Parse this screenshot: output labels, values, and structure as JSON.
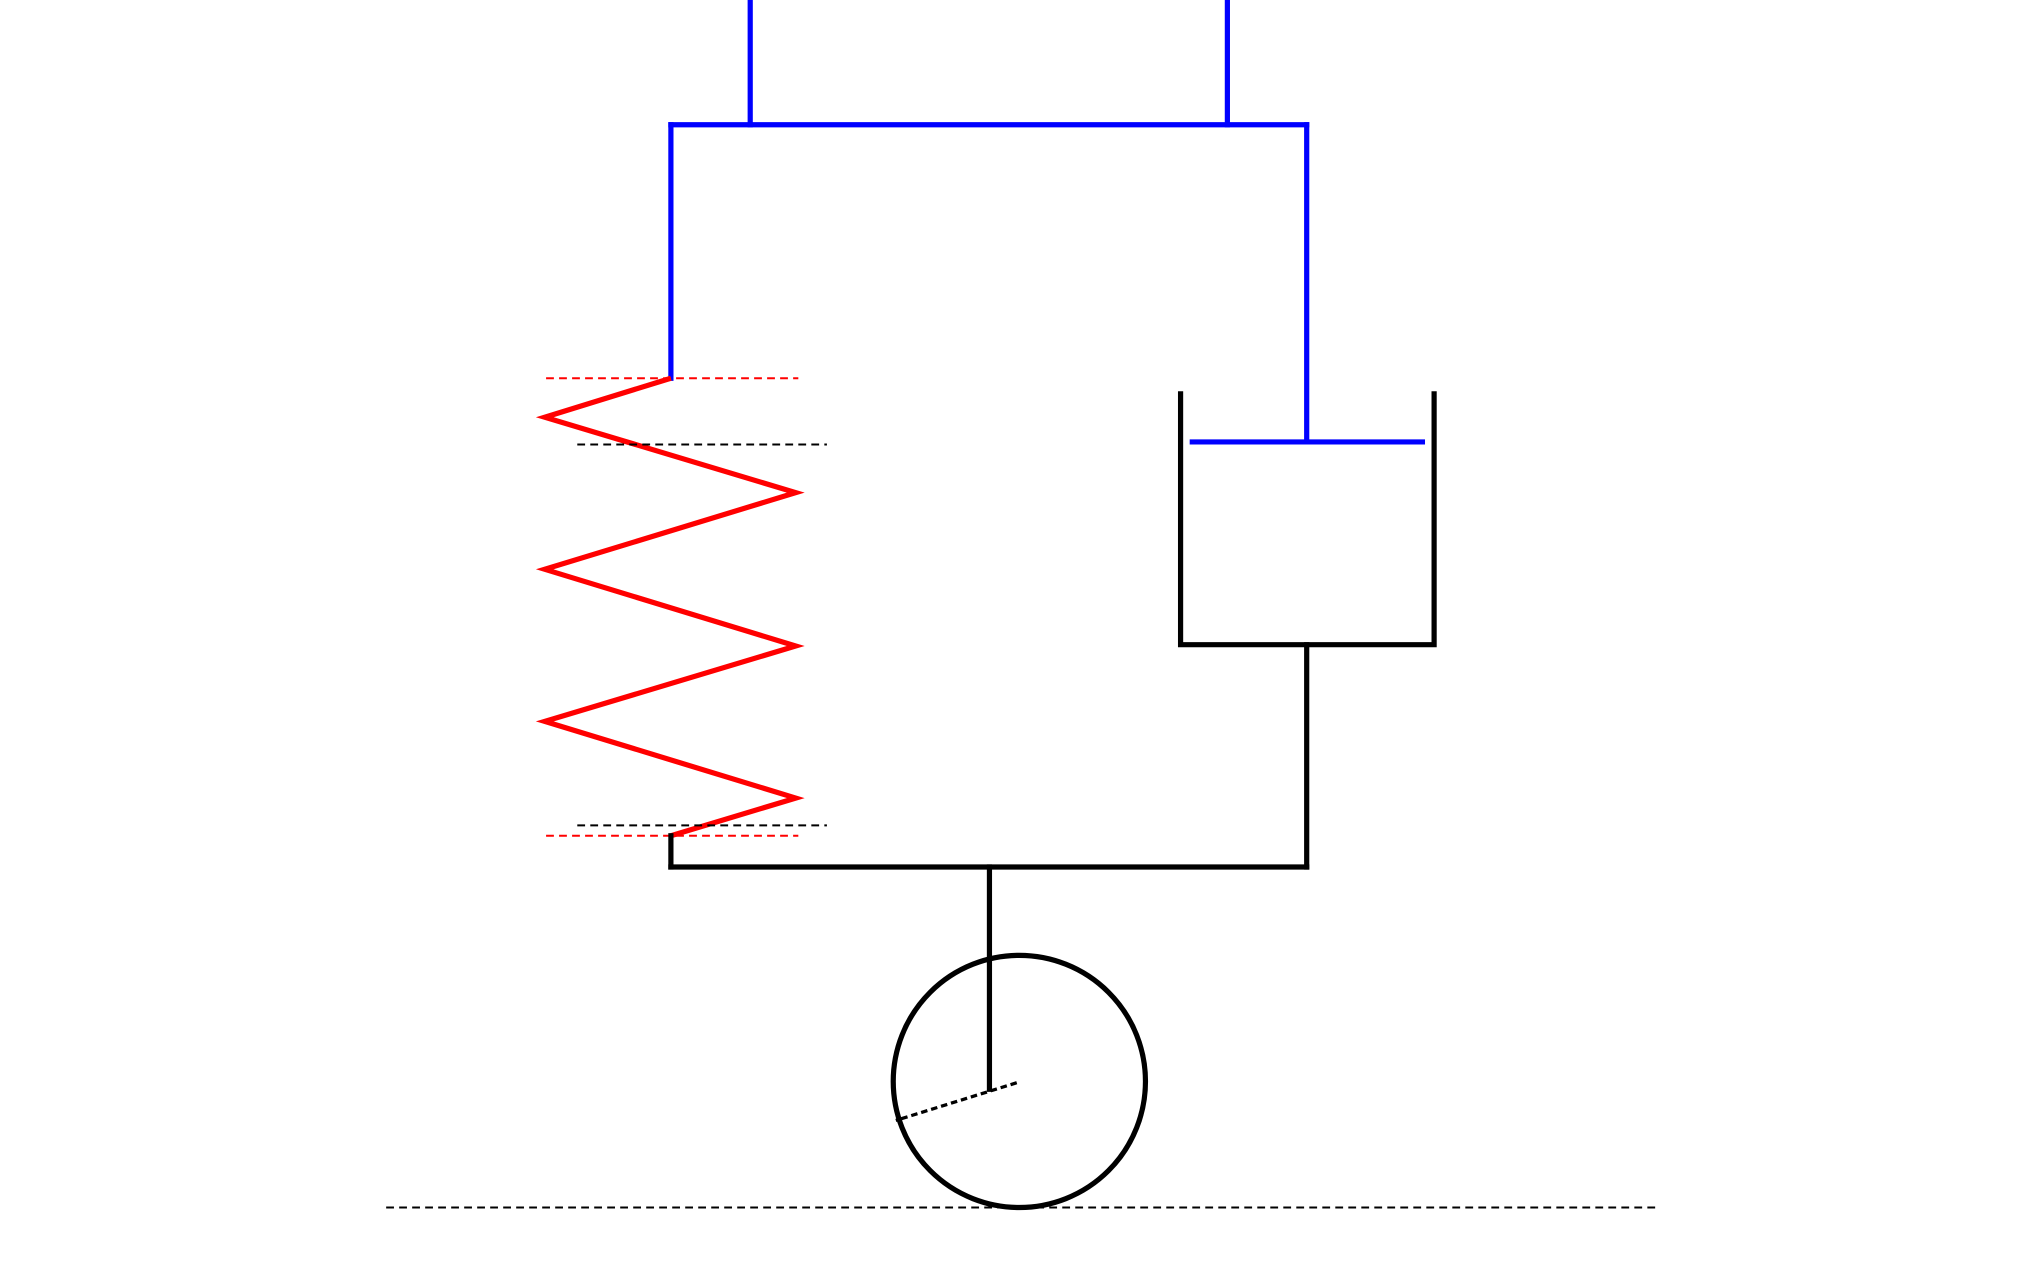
{
  "colors": {
    "background": "#ffffff",
    "upper_mount": "#0000ff",
    "spring": "#ff0000",
    "damper_and_wheel": "#000000",
    "spring_reference_lines": "#ff0000",
    "compression_reference_lines": "#000000",
    "ground_line": "#000000"
  },
  "diagram": {
    "components": [
      "upper-mount-frame",
      "spring",
      "damper",
      "lower-frame",
      "wheel",
      "ground-line"
    ],
    "spring_coil_peaks": 6,
    "dashed_reference_lines": 5,
    "text_labels": []
  }
}
